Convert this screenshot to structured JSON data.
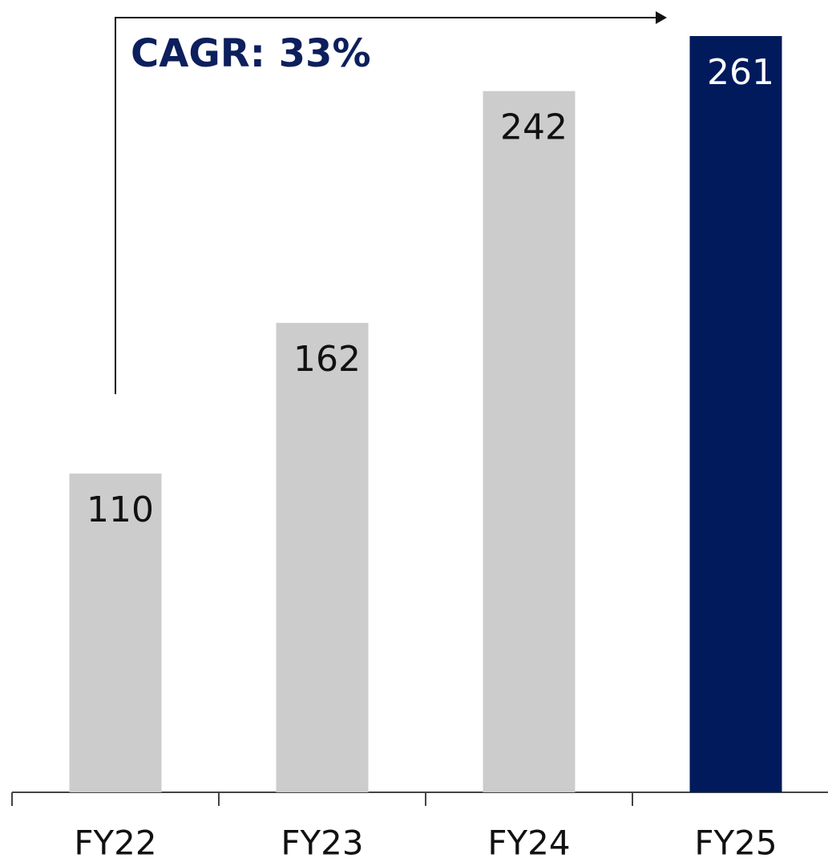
{
  "chart_data": {
    "type": "bar",
    "categories": [
      "FY22",
      "FY23",
      "FY24",
      "FY25"
    ],
    "values": [
      110,
      162,
      242,
      261
    ],
    "colors": [
      "#cccccc",
      "#cccccc",
      "#cccccc",
      "#001a5c"
    ],
    "value_label_colors": [
      "#111111",
      "#111111",
      "#111111",
      "#ffffff"
    ],
    "annotation": "CAGR: 33%"
  }
}
